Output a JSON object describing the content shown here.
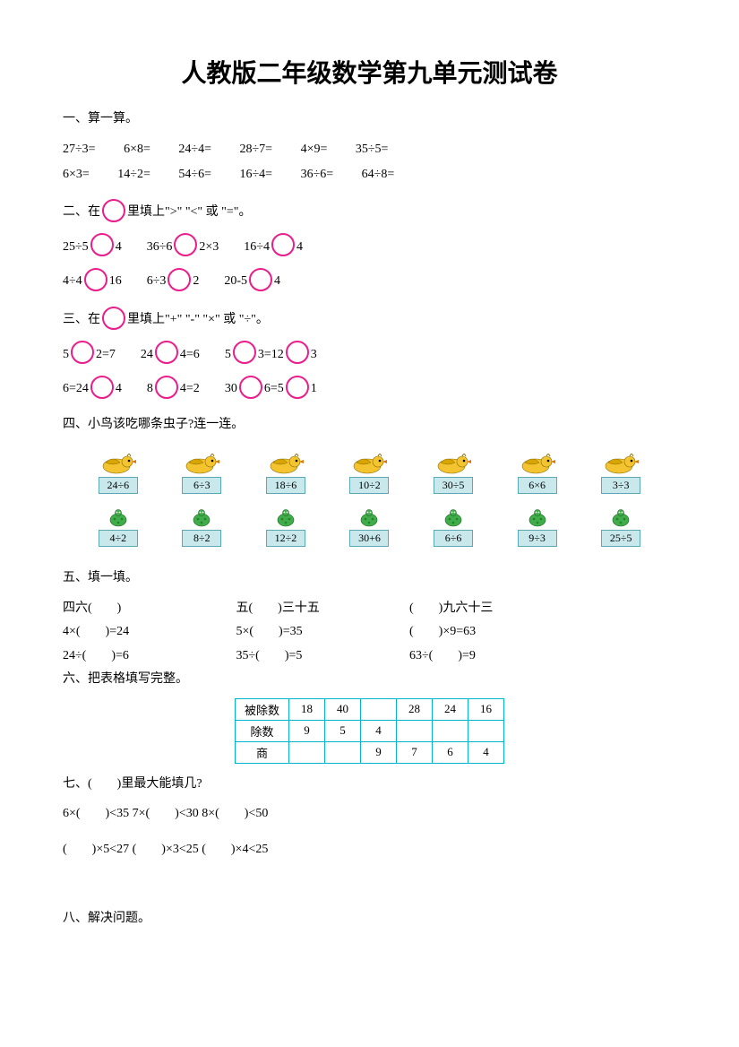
{
  "title": "人教版二年级数学第九单元测试卷",
  "q1": {
    "heading": "一、算一算。",
    "row1": [
      "27÷3=",
      "6×8=",
      "24÷4=",
      "28÷7=",
      "4×9=",
      "35÷5="
    ],
    "row2": [
      "6×3=",
      "14÷2=",
      "54÷6=",
      "16÷4=",
      "36÷6=",
      "64÷8="
    ]
  },
  "q2": {
    "heading_a": "二、在",
    "heading_b": "里填上\">\" \"<\" 或 \"=\"。",
    "row1": [
      {
        "l": "25÷5",
        "r": "4"
      },
      {
        "l": "36÷6",
        "r": "2×3"
      },
      {
        "l": "16÷4",
        "r": "4"
      }
    ],
    "row2": [
      {
        "l": "4÷4",
        "r": "16"
      },
      {
        "l": "6÷3",
        "r": "2"
      },
      {
        "l": "20-5",
        "r": "4"
      }
    ]
  },
  "q3": {
    "heading_a": "三、在",
    "heading_b": "里填上\"+\" \"-\" \"×\" 或 \"÷\"。",
    "row1": [
      {
        "p": [
          {
            "t": "5"
          },
          {
            "c": true
          },
          {
            "t": "2=7"
          }
        ]
      },
      {
        "p": [
          {
            "t": "24"
          },
          {
            "c": true
          },
          {
            "t": "4=6"
          }
        ]
      },
      {
        "p": [
          {
            "t": "5"
          },
          {
            "c": true
          },
          {
            "t": "3=12"
          },
          {
            "c": true
          },
          {
            "t": "3"
          }
        ]
      }
    ],
    "row2": [
      {
        "p": [
          {
            "t": "6=24"
          },
          {
            "c": true
          },
          {
            "t": "4"
          }
        ]
      },
      {
        "p": [
          {
            "t": "8"
          },
          {
            "c": true
          },
          {
            "t": "4=2"
          }
        ]
      },
      {
        "p": [
          {
            "t": "30"
          },
          {
            "c": true
          },
          {
            "t": "6=5"
          },
          {
            "c": true
          },
          {
            "t": "1"
          }
        ]
      }
    ]
  },
  "q4": {
    "heading": "四、小鸟该吃哪条虫子?连一连。",
    "birds": [
      "24÷6",
      "6÷3",
      "18÷6",
      "10÷2",
      "30÷5",
      "6×6",
      "3÷3"
    ],
    "bugs": [
      "4÷2",
      "8÷2",
      "12÷2",
      "30+6",
      "6÷6",
      "9÷3",
      "25÷5"
    ],
    "bird_colors": {
      "body": "#f4c430",
      "wing": "#d9a500",
      "beak": "#e57300"
    },
    "bug_colors": {
      "body": "#3fae49",
      "spot": "#2a7a33"
    },
    "card_bg": "#c9e8ec",
    "card_border": "#5aa9b3"
  },
  "q5": {
    "heading": "五、填一填。",
    "row1": [
      "四六(　　)",
      "五(　　)三十五",
      "(　　)九六十三"
    ],
    "row2": [
      "4×(　　)=24",
      "5×(　　)=35",
      "(　　)×9=63"
    ],
    "row3": [
      "24÷(　　)=6",
      "35÷(　　)=5",
      "63÷(　　)=9"
    ]
  },
  "q6": {
    "heading": "六、把表格填写完整。",
    "headers": [
      "被除数",
      "除数",
      "商"
    ],
    "cols": [
      [
        "18",
        "9",
        ""
      ],
      [
        "40",
        "5",
        ""
      ],
      [
        "",
        "4",
        "9"
      ],
      [
        "28",
        "",
        "7"
      ],
      [
        "24",
        "",
        "6"
      ],
      [
        "16",
        "",
        "4"
      ]
    ],
    "border_color": "#00b4cc"
  },
  "q7": {
    "heading": "七、(　　)里最大能填几?",
    "row1": "6×(　　)<35 7×(　　)<30 8×(　　)<50",
    "row2": "(　　)×5<27 (　　)×3<25 (　　)×4<25"
  },
  "q8": {
    "heading": "八、解决问题。"
  }
}
